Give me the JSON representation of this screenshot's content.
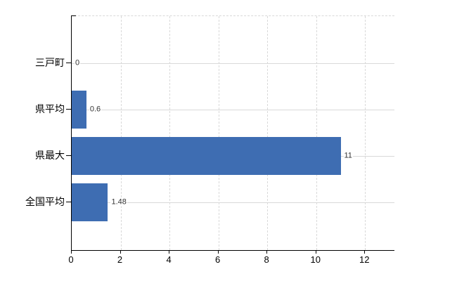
{
  "chart_data": {
    "type": "bar",
    "orientation": "horizontal",
    "title": "",
    "categories": [
      "三戸町",
      "県平均",
      "県最大",
      "全国平均"
    ],
    "values": [
      0,
      0.6,
      11,
      1.48
    ],
    "value_labels": [
      "0",
      "0.6",
      "11",
      "1.48"
    ],
    "series": [
      {
        "name": "",
        "values": [
          0,
          0.6,
          11,
          1.48
        ]
      }
    ],
    "x_ticks": [
      0,
      2,
      4,
      6,
      8,
      10,
      12
    ],
    "x_tick_labels": [
      "0",
      "2",
      "4",
      "6",
      "8",
      "10",
      "12"
    ],
    "xlim": [
      0,
      13.2
    ],
    "xlabel": "",
    "ylabel": "",
    "grid": true,
    "legend": false,
    "colors": {
      "bar": "#3e6db2",
      "grid": "#d9d9d9",
      "axis": "#000000",
      "text": "#000000",
      "value_text": "#333333",
      "background": "#ffffff"
    }
  }
}
